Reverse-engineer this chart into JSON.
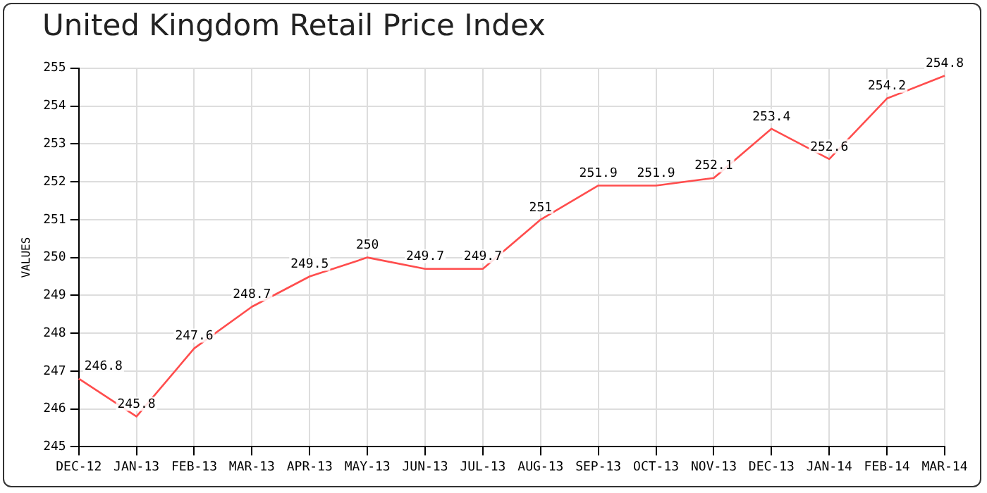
{
  "chart_data": {
    "type": "line",
    "title": "United Kingdom Retail Price Index",
    "ylabel": "VALUES",
    "categories": [
      "DEC-12",
      "JAN-13",
      "FEB-13",
      "MAR-13",
      "APR-13",
      "MAY-13",
      "JUN-13",
      "JUL-13",
      "AUG-13",
      "SEP-13",
      "OCT-13",
      "NOV-13",
      "DEC-13",
      "JAN-14",
      "FEB-14",
      "MAR-14"
    ],
    "series": [
      {
        "color": "#ff4d4d",
        "values": [
          246.8,
          245.8,
          247.6,
          248.7,
          249.5,
          250,
          249.7,
          249.7,
          251,
          251.9,
          251.9,
          252.1,
          253.4,
          252.6,
          254.2,
          254.8
        ]
      }
    ],
    "ylim": [
      245,
      255
    ],
    "yticks": [
      245,
      246,
      247,
      248,
      249,
      250,
      251,
      252,
      253,
      254,
      255
    ],
    "grid": true,
    "data_labels": true,
    "marker": "none",
    "line_style": "solid",
    "legend": false
  }
}
